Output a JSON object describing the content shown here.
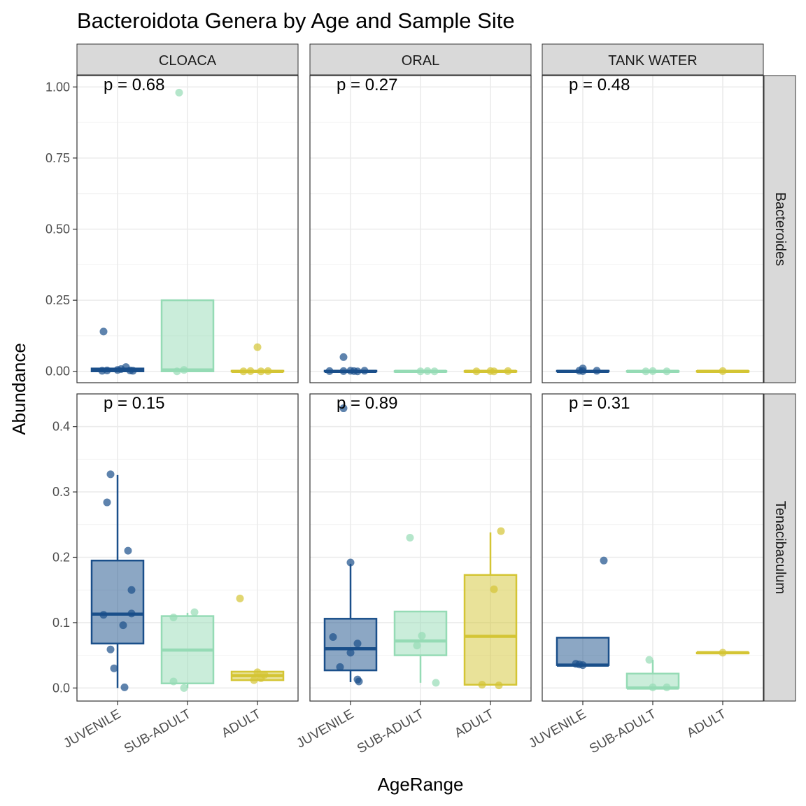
{
  "chart_data": {
    "type": "boxplot",
    "title": "Bacteroidota Genera by Age and Sample Site",
    "xlabel": "AgeRange",
    "ylabel": "Abundance",
    "categories": [
      "JUVENILE",
      "SUB-ADULT",
      "ADULT"
    ],
    "colors": {
      "JUVENILE": "#1a4f8a",
      "SUB-ADULT": "#95dbb5",
      "ADULT": "#d4c534"
    },
    "columns": [
      "CLOACA",
      "ORAL",
      "TANK WATER"
    ],
    "rows": [
      {
        "genus": "Bacteroides",
        "ylim": [
          -0.04,
          1.04
        ],
        "yticks": [
          0.0,
          0.25,
          0.5,
          0.75,
          1.0
        ],
        "ytick_labels": [
          "0.00",
          "0.25",
          "0.50",
          "0.75",
          "1.00"
        ]
      },
      {
        "genus": "Tenacibaculum",
        "ylim": [
          -0.02,
          0.45
        ],
        "yticks": [
          0.0,
          0.1,
          0.2,
          0.3,
          0.4
        ],
        "ytick_labels": [
          "0.0",
          "0.1",
          "0.2",
          "0.3",
          "0.4"
        ]
      }
    ],
    "panels": [
      {
        "row": 0,
        "col": 0,
        "pvalue": "p = 0.68",
        "groups": [
          {
            "category": "JUVENILE",
            "box": {
              "q1": 0.0,
              "median": 0.005,
              "q3": 0.01,
              "lower": 0.0,
              "upper": 0.01
            },
            "points": [
              [
                -0.2,
                0.14
              ],
              [
                -0.22,
                0.002
              ],
              [
                -0.15,
                0.003
              ],
              [
                0.0,
                0.005
              ],
              [
                0.05,
                0.008
              ],
              [
                0.12,
                0.015
              ],
              [
                0.18,
                0.003
              ],
              [
                0.22,
                0.002
              ]
            ]
          },
          {
            "category": "SUB-ADULT",
            "box": {
              "q1": 0.0,
              "median": 0.005,
              "q3": 0.25,
              "lower": 0.0,
              "upper": 0.25
            },
            "points": [
              [
                -0.12,
                0.98
              ],
              [
                -0.15,
                0.0
              ],
              [
                -0.05,
                0.005
              ]
            ]
          },
          {
            "category": "ADULT",
            "box": {
              "q1": 0.0,
              "median": 0.0,
              "q3": 0.002,
              "lower": 0.0,
              "upper": 0.002
            },
            "points": [
              [
                0.0,
                0.085
              ],
              [
                -0.2,
                0.0
              ],
              [
                -0.1,
                0.001
              ],
              [
                0.05,
                0.0
              ],
              [
                0.15,
                0.001
              ]
            ]
          }
        ]
      },
      {
        "row": 0,
        "col": 1,
        "pvalue": "p = 0.27",
        "groups": [
          {
            "category": "JUVENILE",
            "box": {
              "q1": 0.0,
              "median": 0.0,
              "q3": 0.002,
              "lower": 0.0,
              "upper": 0.002
            },
            "points": [
              [
                -0.1,
                0.05
              ],
              [
                -0.3,
                0.001
              ],
              [
                -0.1,
                0.001
              ],
              [
                0.0,
                0.002
              ],
              [
                0.05,
                0.001
              ],
              [
                0.1,
                0.0
              ],
              [
                0.2,
                0.002
              ]
            ]
          },
          {
            "category": "SUB-ADULT",
            "box": {
              "q1": 0.0,
              "median": 0.0,
              "q3": 0.001,
              "lower": 0.0,
              "upper": 0.001
            },
            "points": [
              [
                0.0,
                0.0
              ],
              [
                0.1,
                0.001
              ],
              [
                0.2,
                0.0
              ]
            ]
          },
          {
            "category": "ADULT",
            "box": {
              "q1": 0.0,
              "median": 0.0,
              "q3": 0.001,
              "lower": 0.0,
              "upper": 0.001
            },
            "points": [
              [
                -0.2,
                0.0
              ],
              [
                0.0,
                0.001
              ],
              [
                0.05,
                0.0
              ],
              [
                0.25,
                0.001
              ]
            ]
          }
        ]
      },
      {
        "row": 0,
        "col": 2,
        "pvalue": "p = 0.48",
        "groups": [
          {
            "category": "JUVENILE",
            "box": {
              "q1": 0.0,
              "median": 0.0,
              "q3": 0.002,
              "lower": 0.0,
              "upper": 0.002
            },
            "points": [
              [
                0.0,
                0.01
              ],
              [
                -0.05,
                0.002
              ],
              [
                0.2,
                0.002
              ],
              [
                0.0,
                0.001
              ]
            ]
          },
          {
            "category": "SUB-ADULT",
            "box": {
              "q1": 0.0,
              "median": 0.0,
              "q3": 0.001,
              "lower": 0.0,
              "upper": 0.001
            },
            "points": [
              [
                -0.1,
                0.0
              ],
              [
                0.0,
                0.001
              ],
              [
                0.2,
                0.0
              ]
            ]
          },
          {
            "category": "ADULT",
            "box": {
              "q1": 0.0,
              "median": 0.0,
              "q3": 0.001,
              "lower": 0.0,
              "upper": 0.001
            },
            "points": [
              [
                0.0,
                0.001
              ]
            ]
          }
        ]
      },
      {
        "row": 1,
        "col": 0,
        "pvalue": "p = 0.15",
        "groups": [
          {
            "category": "JUVENILE",
            "box": {
              "q1": 0.068,
              "median": 0.113,
              "q3": 0.195,
              "lower": 0.0,
              "upper": 0.326
            },
            "points": [
              [
                -0.1,
                0.327
              ],
              [
                -0.15,
                0.284
              ],
              [
                0.15,
                0.21
              ],
              [
                0.2,
                0.15
              ],
              [
                -0.2,
                0.112
              ],
              [
                0.2,
                0.114
              ],
              [
                0.08,
                0.096
              ],
              [
                -0.1,
                0.059
              ],
              [
                -0.05,
                0.03
              ],
              [
                0.1,
                0.001
              ]
            ]
          },
          {
            "category": "SUB-ADULT",
            "box": {
              "q1": 0.007,
              "median": 0.058,
              "q3": 0.11,
              "lower": 0.0,
              "upper": 0.115
            },
            "points": [
              [
                -0.2,
                0.108
              ],
              [
                0.1,
                0.116
              ],
              [
                -0.2,
                0.01
              ],
              [
                -0.05,
                0.0
              ]
            ]
          },
          {
            "category": "ADULT",
            "box": {
              "q1": 0.012,
              "median": 0.019,
              "q3": 0.025,
              "lower": 0.012,
              "upper": 0.025
            },
            "points": [
              [
                -0.25,
                0.137
              ],
              [
                0.0,
                0.024
              ],
              [
                -0.05,
                0.012
              ],
              [
                0.05,
                0.015
              ],
              [
                0.1,
                0.02
              ]
            ]
          }
        ]
      },
      {
        "row": 1,
        "col": 1,
        "pvalue": "p = 0.89",
        "groups": [
          {
            "category": "JUVENILE",
            "box": {
              "q1": 0.027,
              "median": 0.06,
              "q3": 0.106,
              "lower": 0.009,
              "upper": 0.19
            },
            "points": [
              [
                -0.1,
                0.428
              ],
              [
                0.0,
                0.192
              ],
              [
                -0.25,
                0.078
              ],
              [
                0.1,
                0.068
              ],
              [
                0.0,
                0.054
              ],
              [
                -0.15,
                0.032
              ],
              [
                0.1,
                0.013
              ],
              [
                0.12,
                0.01
              ]
            ]
          },
          {
            "category": "SUB-ADULT",
            "box": {
              "q1": 0.05,
              "median": 0.072,
              "q3": 0.117,
              "lower": 0.008,
              "upper": 0.117
            },
            "points": [
              [
                -0.15,
                0.23
              ],
              [
                0.02,
                0.08
              ],
              [
                -0.05,
                0.065
              ],
              [
                0.22,
                0.008
              ]
            ]
          },
          {
            "category": "ADULT",
            "box": {
              "q1": 0.005,
              "median": 0.079,
              "q3": 0.173,
              "lower": 0.005,
              "upper": 0.238
            },
            "points": [
              [
                0.15,
                0.24
              ],
              [
                0.05,
                0.151
              ],
              [
                -0.12,
                0.005
              ],
              [
                0.12,
                0.004
              ]
            ]
          }
        ]
      },
      {
        "row": 1,
        "col": 2,
        "pvalue": "p = 0.31",
        "groups": [
          {
            "category": "JUVENILE",
            "box": {
              "q1": 0.035,
              "median": 0.035,
              "q3": 0.077,
              "lower": 0.035,
              "upper": 0.077
            },
            "points": [
              [
                0.3,
                0.195
              ],
              [
                -0.1,
                0.037
              ],
              [
                0.0,
                0.035
              ],
              [
                -0.05,
                0.036
              ]
            ]
          },
          {
            "category": "SUB-ADULT",
            "box": {
              "q1": 0.0,
              "median": 0.0,
              "q3": 0.022,
              "lower": 0.0,
              "upper": 0.043
            },
            "points": [
              [
                -0.05,
                0.043
              ],
              [
                0.0,
                0.001
              ],
              [
                0.2,
                0.001
              ]
            ]
          },
          {
            "category": "ADULT",
            "box": {
              "q1": 0.054,
              "median": 0.054,
              "q3": 0.054,
              "lower": 0.054,
              "upper": 0.054
            },
            "points": [
              [
                0.0,
                0.054
              ]
            ]
          }
        ]
      }
    ]
  }
}
